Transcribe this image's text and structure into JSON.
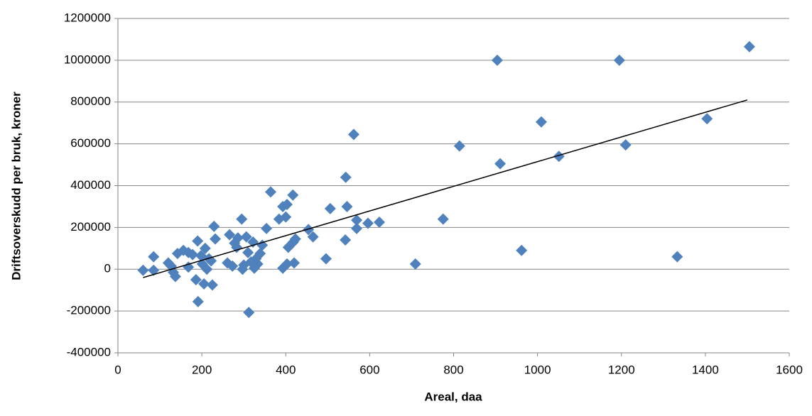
{
  "chart_data": {
    "type": "scatter",
    "x_label": "Areal, daa",
    "y_label": "Driftsoverskudd per bruk, kroner",
    "xlim": [
      0,
      1600
    ],
    "xticks": [
      0,
      200,
      400,
      600,
      800,
      1000,
      1200,
      1400,
      1600
    ],
    "ylim": [
      -400000,
      1200000
    ],
    "yticks": [
      -400000,
      -200000,
      0,
      200000,
      400000,
      600000,
      800000,
      1000000,
      1200000
    ],
    "grid": true,
    "series": [
      {
        "color": "#4f81bd",
        "x": [
          60,
          85,
          85,
          120,
          127,
          132,
          137,
          142,
          156,
          168,
          168,
          178,
          190,
          186,
          191,
          198,
          201,
          205,
          208,
          212,
          217,
          222,
          225,
          229,
          232,
          261,
          266,
          273,
          278,
          283,
          286,
          295,
          297,
          300,
          306,
          312,
          310,
          317,
          322,
          325,
          329,
          333,
          339,
          344,
          354,
          364,
          384,
          393,
          393,
          400,
          403,
          403,
          406,
          417,
          418,
          420,
          423,
          454,
          465,
          496,
          506,
          542,
          543,
          546,
          562,
          569,
          569,
          596,
          623,
          709,
          775,
          814,
          904,
          911,
          962,
          1009,
          1051,
          1195,
          1210,
          1333,
          1404,
          1505
        ],
        "values": [
          -5000,
          60000,
          -5000,
          30000,
          15000,
          -15000,
          -35000,
          75000,
          90000,
          80000,
          10000,
          70000,
          135000,
          -50000,
          -155000,
          65000,
          25000,
          -70000,
          100000,
          0,
          50000,
          40000,
          -75000,
          205000,
          145000,
          30000,
          165000,
          15000,
          125000,
          105000,
          150000,
          240000,
          0,
          20000,
          155000,
          -207000,
          80000,
          35000,
          130000,
          5000,
          50000,
          25000,
          75000,
          115000,
          195000,
          370000,
          240000,
          300000,
          5000,
          250000,
          310000,
          25000,
          105000,
          355000,
          130000,
          30000,
          145000,
          190000,
          155000,
          50000,
          290000,
          140000,
          440000,
          300000,
          645000,
          235000,
          195000,
          220000,
          225000,
          25000,
          240000,
          590000,
          1000000,
          505000,
          90000,
          705000,
          540000,
          1000000,
          595000,
          60000,
          720000,
          1065000
        ]
      }
    ],
    "trendline": {
      "color": "#000000",
      "x": [
        60,
        1500
      ],
      "values": [
        -40000,
        810000
      ]
    }
  }
}
